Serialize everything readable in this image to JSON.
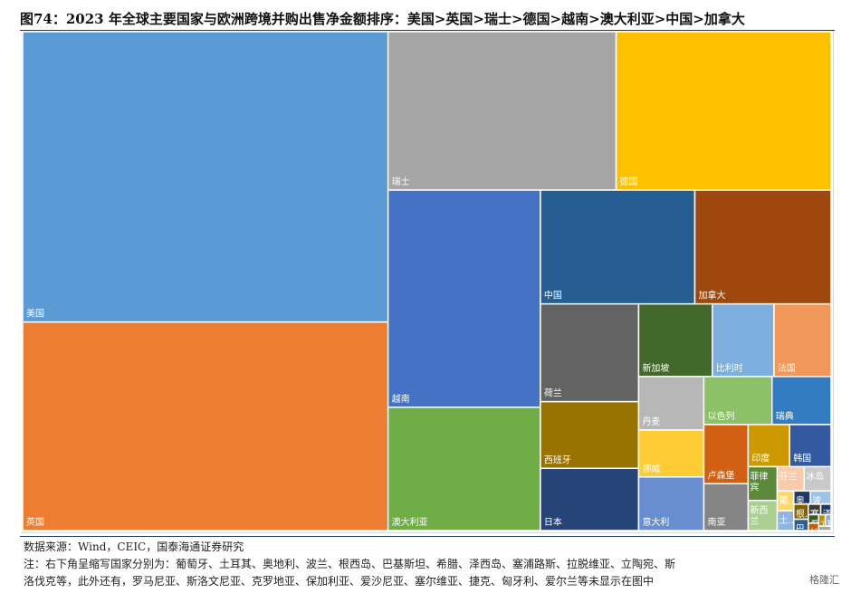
{
  "title": "图74：2023 年全球主要国家与欧洲跨境并购出售净金额排序：美国>英国>瑞士>德国>越南>澳大利亚>中国>加拿大",
  "footer": {
    "source": "数据来源：Wind，CEIC，国泰海通证券研究",
    "note_line1": "注：右下角呈缩写国家分别为：葡萄牙、土耳其、奥地利、波兰、根西岛、巴基斯坦、希腊、泽西岛、塞浦路斯、拉脱维亚、立陶宛、斯",
    "note_line2": "洛伐克等，此外还有，罗马尼亚、斯洛文尼亚、克罗地亚、保加利亚、爱沙尼亚、塞尔维亚、捷克、匈牙利、爱尔兰等未显示在图中",
    "watermark": "格隆汇"
  },
  "chart_data": {
    "type": "treemap",
    "title": "图74：2023 年全球主要国家与欧洲跨境并购出售净金额排序：美国>英国>瑞士>德国>越南>澳大利亚>中国>加拿大",
    "unit": "",
    "items": [
      {
        "name": "美国",
        "label": "美国",
        "value": 97.2,
        "color": "#5b9bd5"
      },
      {
        "name": "英国",
        "label": "英国",
        "value": 69.8,
        "color": "#ed7d31"
      },
      {
        "name": "瑞士",
        "label": "瑞士",
        "value": 33.1,
        "color": "#a5a5a5"
      },
      {
        "name": "德国",
        "label": "德国",
        "value": 31.2,
        "color": "#ffc000"
      },
      {
        "name": "越南",
        "label": "越南",
        "value": 30.3,
        "color": "#4472c4"
      },
      {
        "name": "澳大利亚",
        "label": "澳大利亚",
        "value": 17.2,
        "color": "#70ad47"
      },
      {
        "name": "中国",
        "label": "中国",
        "value": 16.1,
        "color": "#255e91"
      },
      {
        "name": "加拿大",
        "label": "加拿大",
        "value": 14.2,
        "color": "#9e480e"
      },
      {
        "name": "荷兰",
        "label": "荷兰",
        "value": 8.8,
        "color": "#636363"
      },
      {
        "name": "西班牙",
        "label": "西班牙",
        "value": 6.0,
        "color": "#997300"
      },
      {
        "name": "日本",
        "label": "日本",
        "value": 5.6,
        "color": "#264478"
      },
      {
        "name": "新加坡",
        "label": "新加坡",
        "value": 4.9,
        "color": "#43682b"
      },
      {
        "name": "比利时",
        "label": "比利时",
        "value": 4.1,
        "color": "#7cafdd"
      },
      {
        "name": "法国",
        "label": "法国",
        "value": 3.8,
        "color": "#f1975a"
      },
      {
        "name": "丹麦",
        "label": "丹麦",
        "value": 3.2,
        "color": "#b7b7b7"
      },
      {
        "name": "挪威",
        "label": "挪威",
        "value": 2.8,
        "color": "#ffcd33"
      },
      {
        "name": "意大利",
        "label": "意大利",
        "value": 3.2,
        "color": "#698ed0"
      },
      {
        "name": "以色列",
        "label": "以色列",
        "value": 3.0,
        "color": "#8cc168"
      },
      {
        "name": "瑞典",
        "label": "瑞典",
        "value": 2.6,
        "color": "#327dc2"
      },
      {
        "name": "卢森堡",
        "label": "卢森堡",
        "value": 2.4,
        "color": "#d26012"
      },
      {
        "name": "南亚",
        "label": "南亚",
        "value": 1.9,
        "color": "#848484"
      },
      {
        "name": "印度",
        "label": "印度",
        "value": 1.6,
        "color": "#cc9a00"
      },
      {
        "name": "韩国",
        "label": "韩国",
        "value": 1.6,
        "color": "#335aa1"
      },
      {
        "name": "菲律宾",
        "label": "菲律\n宾",
        "value": 0.9,
        "color": "#5a8a39"
      },
      {
        "name": "新西兰",
        "label": "新西\n兰",
        "value": 0.8,
        "color": "#a9d08e"
      },
      {
        "name": "芬兰",
        "label": "芬兰",
        "value": 0.6,
        "color": "#f8cbad"
      },
      {
        "name": "冰岛",
        "label": "冰岛",
        "value": 0.6,
        "color": "#c9c9c9"
      },
      {
        "name": "葡萄牙",
        "label": "葡…",
        "value": 0.3,
        "color": "#ffd966"
      },
      {
        "name": "土耳其",
        "label": "土…",
        "value": 0.3,
        "color": "#8eb4e3"
      },
      {
        "name": "奥地利",
        "label": "奥…",
        "value": 0.2,
        "color": "#1f3864"
      },
      {
        "name": "波兰",
        "label": "波…",
        "value": 0.25,
        "color": "#9dc3e6"
      },
      {
        "name": "根西岛",
        "label": "根…",
        "value": 0.2,
        "color": "#7f6000"
      },
      {
        "name": "巴基斯坦",
        "label": "巴…",
        "value": 0.15,
        "color": "#2e5c94"
      },
      {
        "name": "塞浦路斯",
        "label": "塞…",
        "value": 0.12,
        "color": "#3a3a3a"
      },
      {
        "name": "泽西岛",
        "label": "泽",
        "value": 0.1,
        "color": "#203864"
      },
      {
        "name": "希腊",
        "label": "希",
        "value": 0.08,
        "color": "#385723"
      },
      {
        "name": "拉脱维亚",
        "label": "拉",
        "value": 0.07,
        "color": "#c55a11"
      },
      {
        "name": "立陶宛",
        "label": "立",
        "value": 0.07,
        "color": "#bf8f00"
      },
      {
        "name": "斯洛伐克",
        "label": "斯",
        "value": 0.06,
        "color": "#8faadc"
      },
      {
        "name": "其他",
        "label": "",
        "value": 0.05,
        "color": "#a5a5a5"
      }
    ]
  }
}
